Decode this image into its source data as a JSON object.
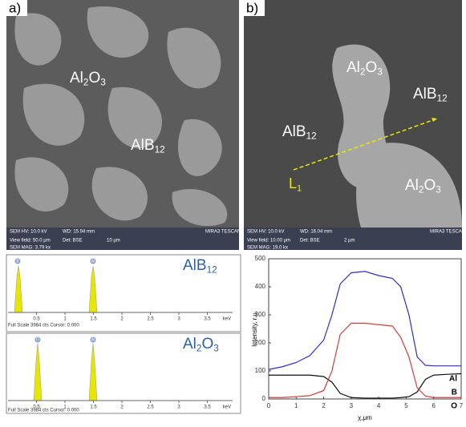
{
  "panel_a": {
    "label": "a)",
    "phases": [
      [
        "Al",
        "2",
        "O",
        "3"
      ],
      [
        "AlB",
        "12"
      ]
    ],
    "info": [
      "SEM HV: 10.0 kV",
      "WD: 15.94 mm",
      "MIRA3 TESCAN",
      "View field: 50.0 µm",
      "Det: BSE",
      "10 µm",
      "SEM MAG: 3.79 kx"
    ]
  },
  "panel_b": {
    "label": "b)",
    "phases": [
      [
        "Al",
        "2",
        "O",
        "3"
      ],
      [
        "AlB",
        "12"
      ],
      [
        "AlB",
        "12"
      ],
      [
        "Al",
        "2",
        "O",
        "3"
      ]
    ],
    "line_label": [
      "L",
      "1"
    ],
    "info": [
      "SEM HV: 10.0 kV",
      "WD: 16.04 mm",
      "MIRA3 TESCAN",
      "View field: 10.00 µm",
      "Det: BSE",
      "2 µm",
      "SEM MAG: 19.0 kx"
    ]
  },
  "spectra": {
    "xticks": [
      0.5,
      1,
      1.5,
      2,
      2.5,
      3,
      3.5
    ],
    "unit": "keV",
    "footer": "Full Scale 3984 cts Cursor: 0.000",
    "panels": [
      {
        "formula": [
          "AlB",
          "12"
        ],
        "peaks": [
          "B",
          "Al"
        ]
      },
      {
        "formula": [
          "Al",
          "2",
          "O",
          "3"
        ],
        "peaks": [
          "O",
          "Al"
        ]
      }
    ]
  },
  "chart_data": {
    "type": "line",
    "xlabel": "χ,μm",
    "ylabel": "Intensity, r.u.",
    "x": [
      0,
      0.5,
      1,
      1.5,
      2,
      2.3,
      2.6,
      3,
      3.5,
      4,
      4.5,
      4.8,
      5.1,
      5.4,
      5.7,
      6,
      6.5,
      7
    ],
    "series": [
      {
        "name": "Al",
        "color": "#2b2bd4",
        "values": [
          105,
          115,
          130,
          155,
          210,
          300,
          410,
          450,
          455,
          440,
          430,
          400,
          300,
          150,
          120,
          118,
          118,
          118
        ]
      },
      {
        "name": "B",
        "color": "#111111",
        "values": [
          85,
          85,
          85,
          85,
          80,
          60,
          20,
          5,
          3,
          3,
          3,
          5,
          8,
          25,
          70,
          85,
          88,
          90
        ]
      },
      {
        "name": "O",
        "color": "#d43a3a",
        "values": [
          5,
          5,
          8,
          12,
          30,
          100,
          230,
          270,
          270,
          265,
          260,
          220,
          150,
          40,
          10,
          5,
          5,
          5
        ]
      }
    ],
    "xlim": [
      0,
      7
    ],
    "ylim": [
      0,
      500
    ],
    "xticks": [
      0,
      1,
      2,
      3,
      4,
      5,
      6,
      7
    ],
    "yticks": [
      0,
      100,
      200,
      300,
      400,
      500
    ]
  }
}
